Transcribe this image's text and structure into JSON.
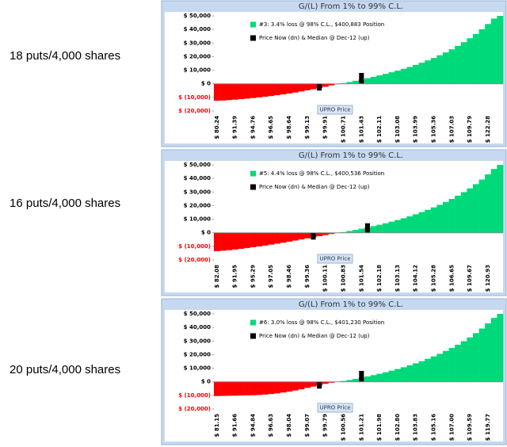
{
  "chart_data": [
    {
      "type": "bar",
      "row_label": "18 puts/4,000 shares",
      "title": "G/(L) From 1% to 99% C.L.",
      "x_label": "UPRO Price",
      "categories": [
        "$ 80.24",
        null,
        null,
        "$ 91.39",
        null,
        null,
        "$ 94.76",
        null,
        null,
        "$ 96.65",
        null,
        null,
        "$ 98.64",
        null,
        null,
        "$ 99.13",
        null,
        null,
        "$ 99.91",
        null,
        null,
        "$ 100.71",
        null,
        null,
        "$ 101.43",
        null,
        null,
        "$ 102.11",
        null,
        null,
        "$ 103.08",
        null,
        null,
        "$ 103.99",
        null,
        null,
        "$ 105.36",
        null,
        null,
        "$ 107.03",
        null,
        null,
        "$ 109.79",
        null,
        null,
        "$ 122.28",
        null,
        null
      ],
      "series": [
        {
          "name": "#3: 3.4% loss @ 98% C.L., $400,883 Position",
          "color": "#00d97a",
          "negative_color": "#ff0000",
          "values": [
            -12500,
            -12300,
            -12000,
            -11700,
            -11300,
            -10900,
            -10500,
            -10000,
            -9500,
            -9000,
            -8400,
            -7800,
            -7100,
            -6400,
            -5600,
            -4800,
            -4000,
            -3100,
            -2200,
            -1200,
            -300,
            500,
            1300,
            2200,
            3100,
            4100,
            5100,
            6200,
            7300,
            8500,
            9700,
            11000,
            12400,
            13900,
            15500,
            17200,
            19000,
            21000,
            23100,
            25400,
            27900,
            30600,
            33500,
            36700,
            40200,
            44000,
            48000,
            50000
          ]
        },
        {
          "name": "Price Now (dn) & Median @ Dec-12 (up)",
          "color": "#000000",
          "values": [
            null,
            null,
            null,
            null,
            null,
            null,
            null,
            null,
            null,
            null,
            null,
            null,
            null,
            null,
            null,
            null,
            null,
            -5000,
            null,
            null,
            null,
            null,
            null,
            null,
            8000,
            null,
            null,
            null,
            null,
            null,
            null,
            null,
            null,
            null,
            null,
            null,
            null,
            null,
            null,
            null,
            null,
            null,
            null,
            null,
            null,
            null,
            null,
            null
          ]
        }
      ],
      "ylim": [
        -20000,
        50000
      ],
      "yticks": [
        {
          "value": -20000,
          "label": "$ (20,000)"
        },
        {
          "value": -10000,
          "label": "$ (10,000)"
        },
        {
          "value": 0,
          "label": "$ 0"
        },
        {
          "value": 10000,
          "label": "$ 10,000"
        },
        {
          "value": 20000,
          "label": "$ 20,000"
        },
        {
          "value": 30000,
          "label": "$ 30,000"
        },
        {
          "value": 40000,
          "label": "$ 40,000"
        },
        {
          "value": 50000,
          "label": "$ 50,000"
        }
      ],
      "negative_tick_color": "#ff0000",
      "grid": false
    },
    {
      "type": "bar",
      "row_label": "16 puts/4,000 shares",
      "title": "G/(L) From 1% to 99% C.L.",
      "x_label": "UPRO Price",
      "categories": [
        "$ 82.08",
        null,
        null,
        "$ 91.95",
        null,
        null,
        "$ 95.29",
        null,
        null,
        "$ 97.05",
        null,
        null,
        "$ 98.46",
        null,
        null,
        "$ 99.36",
        null,
        null,
        "$ 100.11",
        null,
        null,
        "$ 100.83",
        null,
        null,
        "$ 101.54",
        null,
        null,
        "$ 102.18",
        null,
        null,
        "$ 103.13",
        null,
        null,
        "$ 104.12",
        null,
        null,
        "$ 105.28",
        null,
        null,
        "$ 106.65",
        null,
        null,
        "$ 109.67",
        null,
        null,
        "$ 120.93",
        null,
        null
      ],
      "series": [
        {
          "name": "#5: 4.4% loss @ 98% C.L., $400,536 Position",
          "color": "#00d97a",
          "negative_color": "#ff0000",
          "values": [
            -13500,
            -13200,
            -12800,
            -12300,
            -11800,
            -11200,
            -10600,
            -10000,
            -9400,
            -8700,
            -8000,
            -7300,
            -6500,
            -5700,
            -4900,
            -4100,
            -3300,
            -2500,
            -1700,
            -900,
            -200,
            500,
            1300,
            2100,
            3000,
            3900,
            4900,
            5900,
            7000,
            8200,
            9400,
            10700,
            12100,
            13600,
            15200,
            16900,
            18700,
            20600,
            22700,
            24900,
            27300,
            29900,
            32700,
            35800,
            39200,
            43000,
            47000,
            50000
          ]
        },
        {
          "name": "Price Now (dn) & Median @ Dec-12 (up)",
          "color": "#000000",
          "values": [
            null,
            null,
            null,
            null,
            null,
            null,
            null,
            null,
            null,
            null,
            null,
            null,
            null,
            null,
            null,
            null,
            -5000,
            null,
            null,
            null,
            null,
            null,
            null,
            null,
            null,
            7000,
            null,
            null,
            null,
            null,
            null,
            null,
            null,
            null,
            null,
            null,
            null,
            null,
            null,
            null,
            null,
            null,
            null,
            null,
            null,
            null,
            null,
            null
          ]
        }
      ],
      "ylim": [
        -20000,
        50000
      ],
      "yticks": [
        {
          "value": -20000,
          "label": "$ (20,000)"
        },
        {
          "value": -10000,
          "label": "$ (10,000)"
        },
        {
          "value": 0,
          "label": "$ 0"
        },
        {
          "value": 10000,
          "label": "$ 10,000"
        },
        {
          "value": 20000,
          "label": "$ 20,000"
        },
        {
          "value": 30000,
          "label": "$ 30,000"
        },
        {
          "value": 40000,
          "label": "$ 40,000"
        },
        {
          "value": 50000,
          "label": "$ 50,000"
        }
      ],
      "negative_tick_color": "#ff0000",
      "grid": false
    },
    {
      "type": "bar",
      "row_label": "20 puts/4,000 shares",
      "title": "G/(L) From 1% to 99% C.L.",
      "x_label": "UPRO Price",
      "categories": [
        "$ 81.15",
        null,
        null,
        "$ 91.66",
        null,
        null,
        "$ 94.84",
        null,
        null,
        "$ 96.63",
        null,
        null,
        "$ 98.04",
        null,
        null,
        "$ 99.07",
        null,
        null,
        "$ 99.79",
        null,
        null,
        "$ 100.56",
        null,
        null,
        "$ 101.21",
        null,
        null,
        "$ 101.98",
        null,
        null,
        "$ 102.80",
        null,
        null,
        "$ 103.83",
        null,
        null,
        "$ 105.16",
        null,
        null,
        "$ 107.00",
        null,
        null,
        "$ 109.59",
        null,
        null,
        "$ 119.77",
        null,
        null
      ],
      "series": [
        {
          "name": "#6: 3.0% loss @ 98% C.L., $401,230 Position",
          "color": "#00d97a",
          "negative_color": "#ff0000",
          "values": [
            -10500,
            -10400,
            -10300,
            -10200,
            -10100,
            -10000,
            -9900,
            -9700,
            -9400,
            -9000,
            -8500,
            -7900,
            -7200,
            -6400,
            -5500,
            -4500,
            -3500,
            -2500,
            -1500,
            -700,
            0,
            600,
            1300,
            2100,
            3000,
            3900,
            4900,
            5900,
            7000,
            8200,
            9400,
            10700,
            12100,
            13600,
            15200,
            16900,
            18700,
            20600,
            22700,
            24900,
            27300,
            29900,
            32700,
            35800,
            39200,
            43000,
            47000,
            50000
          ]
        },
        {
          "name": "Price Now (dn) & Median @ Dec-12 (up)",
          "color": "#000000",
          "values": [
            null,
            null,
            null,
            null,
            null,
            null,
            null,
            null,
            null,
            null,
            null,
            null,
            null,
            null,
            null,
            null,
            null,
            -5000,
            null,
            null,
            null,
            null,
            null,
            null,
            8000,
            null,
            null,
            null,
            null,
            null,
            null,
            null,
            null,
            null,
            null,
            null,
            null,
            null,
            null,
            null,
            null,
            null,
            null,
            null,
            null,
            null,
            null,
            null
          ]
        }
      ],
      "ylim": [
        -20000,
        50000
      ],
      "yticks": [
        {
          "value": -20000,
          "label": "$ (20,000)"
        },
        {
          "value": -10000,
          "label": "$ (10,000)"
        },
        {
          "value": 0,
          "label": "$ 0"
        },
        {
          "value": 10000,
          "label": "$ 10,000"
        },
        {
          "value": 20000,
          "label": "$ 20,000"
        },
        {
          "value": 30000,
          "label": "$ 30,000"
        },
        {
          "value": 40000,
          "label": "$ 40,000"
        },
        {
          "value": 50000,
          "label": "$ 50,000"
        }
      ],
      "negative_tick_color": "#ff0000",
      "grid": false
    }
  ]
}
